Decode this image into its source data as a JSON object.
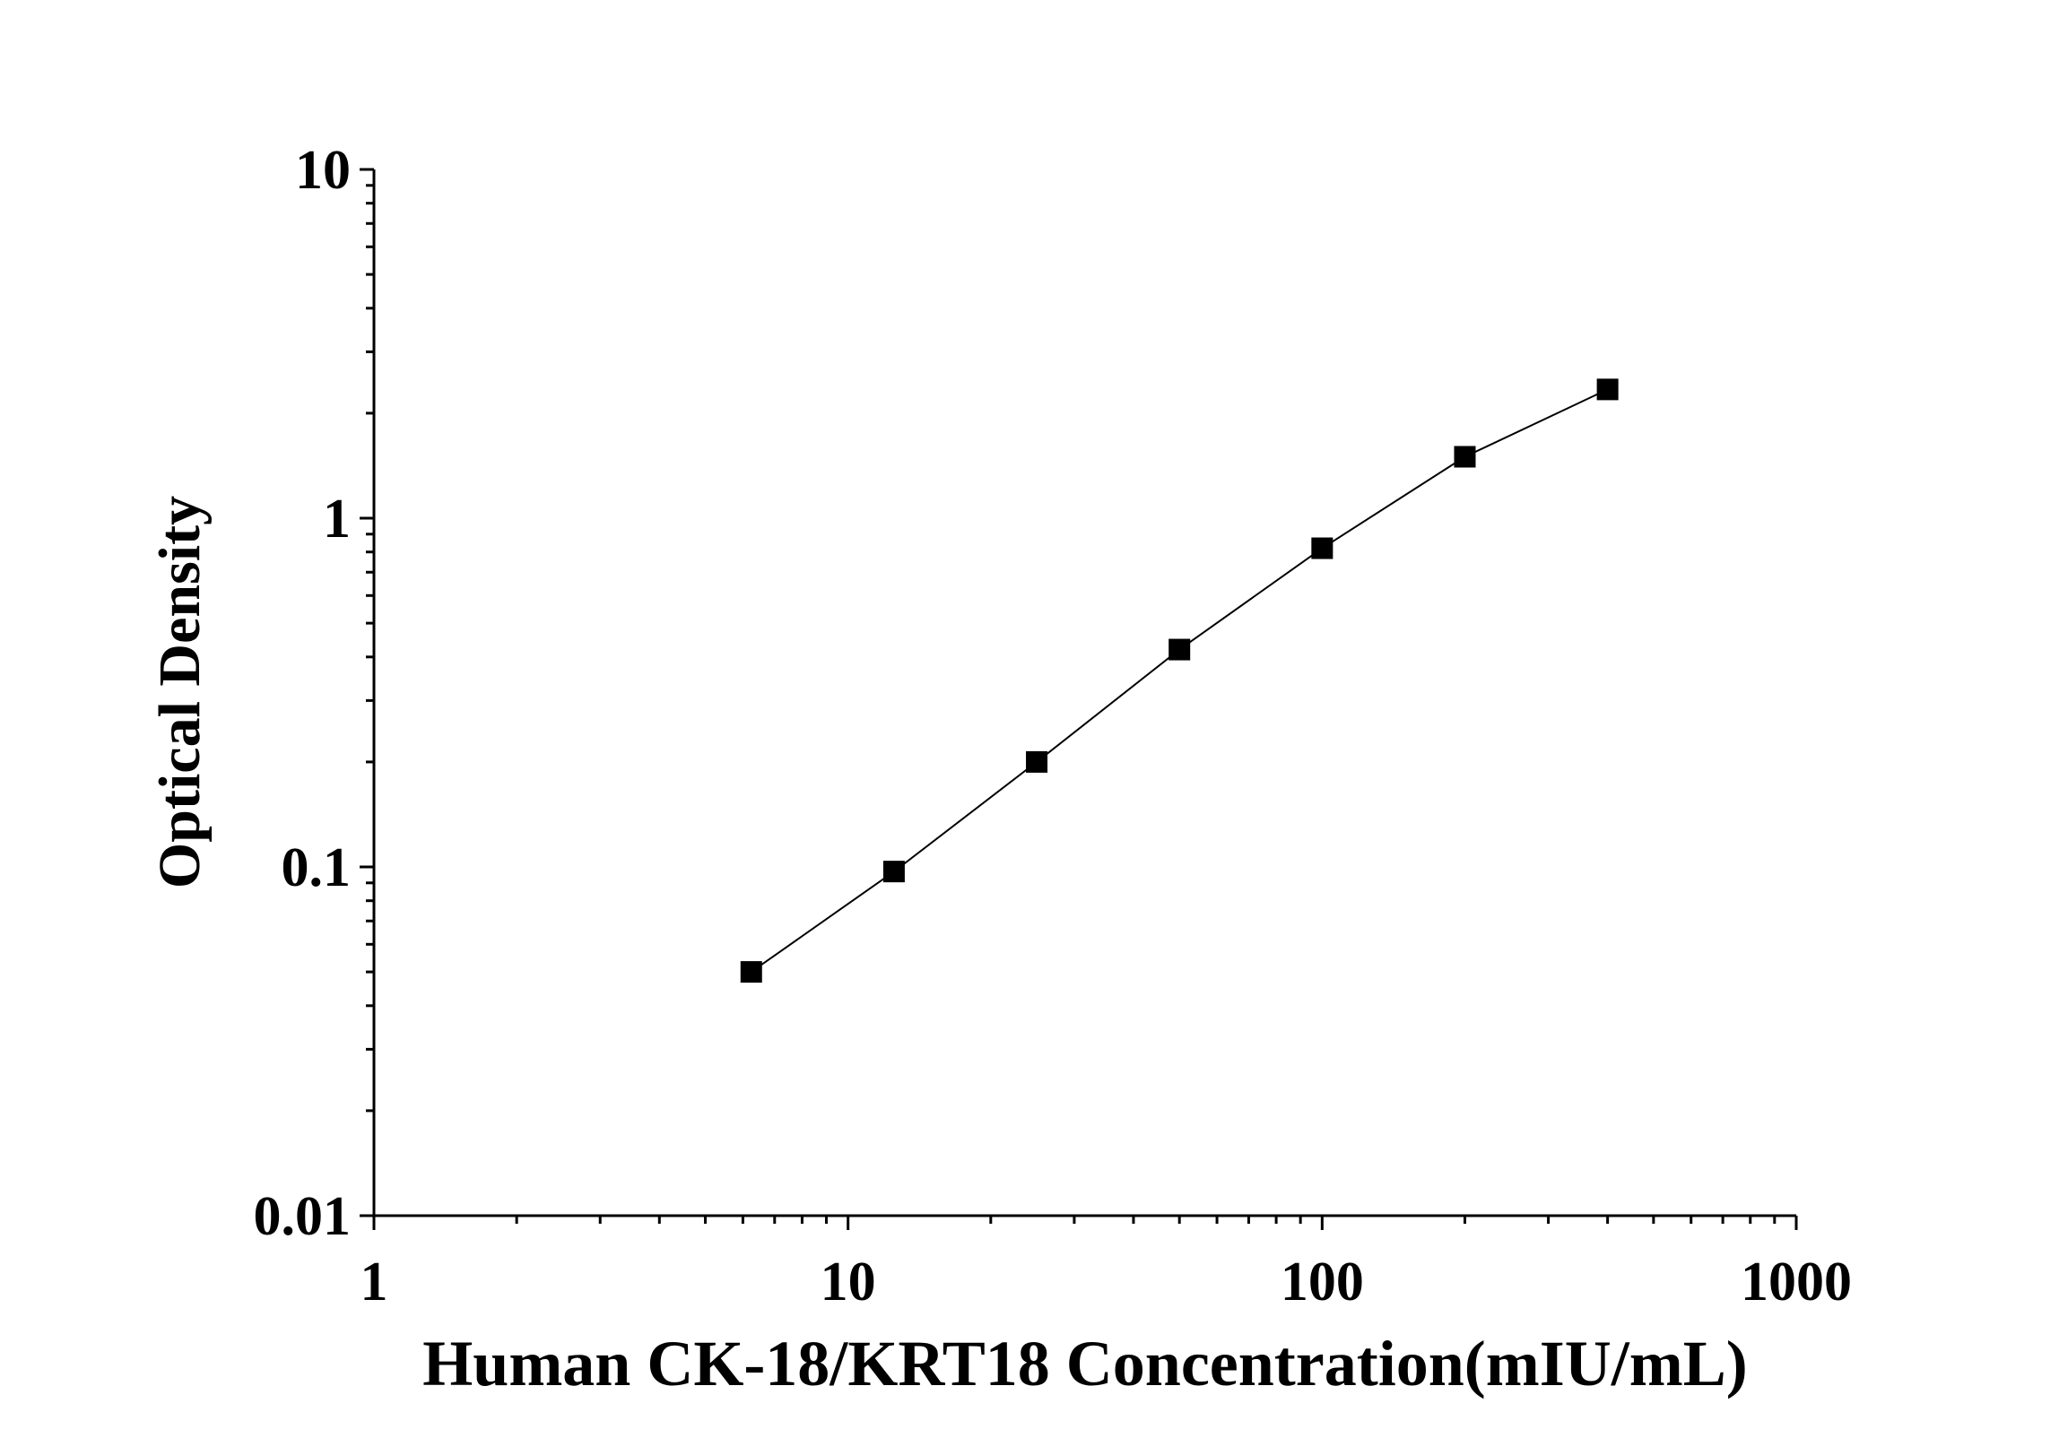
{
  "chart_data": {
    "type": "line",
    "x_label": "Human CK-18/KRT18 Concentration(mIU/mL)",
    "y_label": "Optical Density",
    "x": [
      6.25,
      12.5,
      25,
      50,
      100,
      200,
      400
    ],
    "values": [
      0.05,
      0.097,
      0.2,
      0.42,
      0.82,
      1.5,
      2.34
    ],
    "color": "#000000",
    "marker": "square",
    "xscale": "log",
    "yscale": "log",
    "xlim": [
      1,
      1000
    ],
    "ylim": [
      0.01,
      10
    ],
    "xticks": [
      1,
      10,
      100,
      1000
    ],
    "yticks": [
      0.01,
      0.1,
      1,
      10
    ],
    "grid": false
  }
}
